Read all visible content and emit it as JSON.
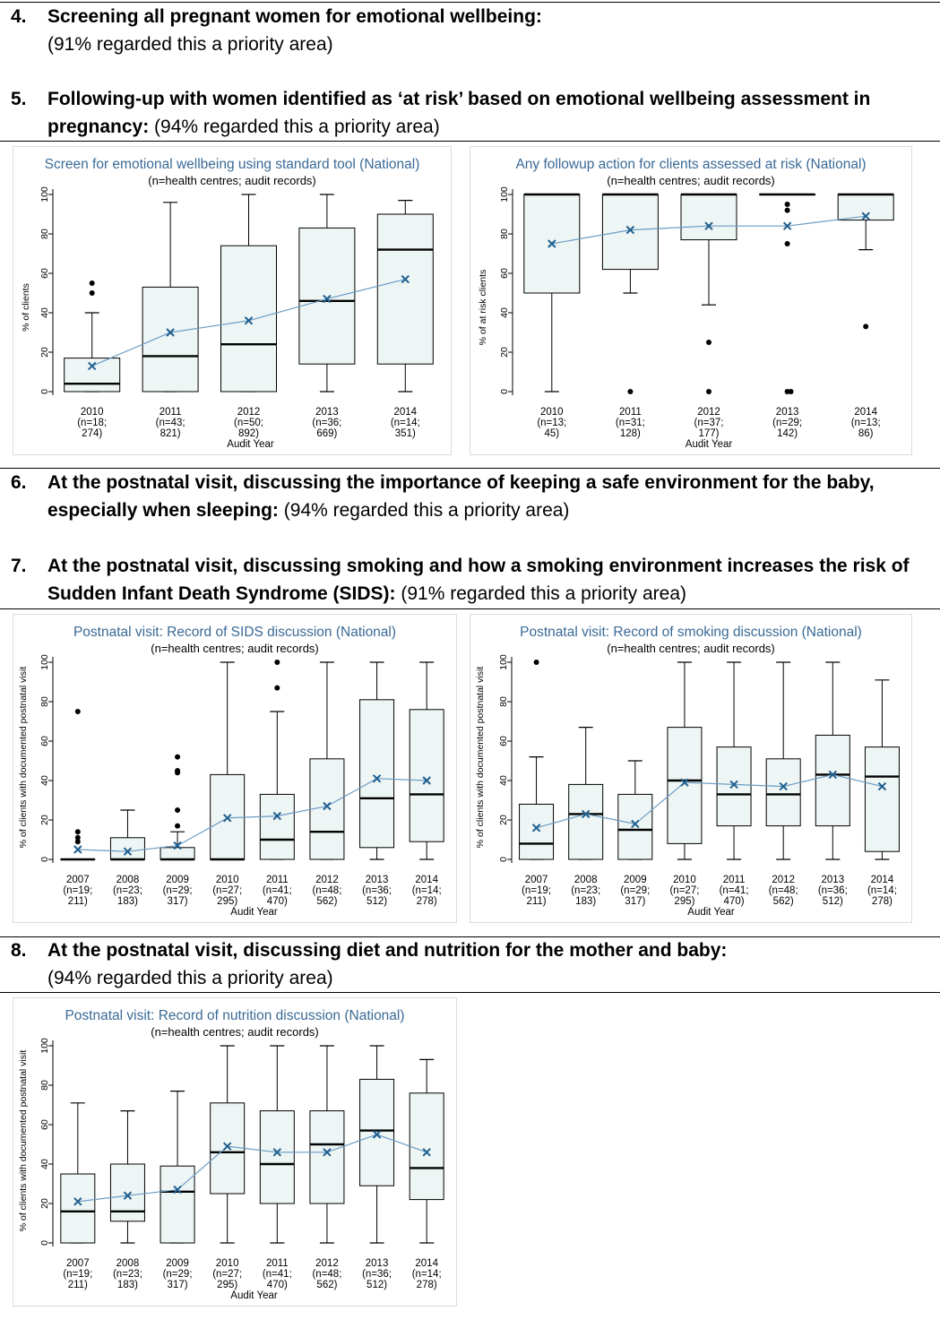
{
  "items": [
    {
      "num": "4.",
      "bold": "Screening all pregnant women for emotional wellbeing:",
      "normal": "(91% regarded this a priority area)",
      "break": true
    },
    {
      "num": "5.",
      "bold": "Following-up with women identified as ‘at risk’ based on emotional wellbeing assessment in pregnancy:",
      "normal": " (94% regarded this a priority area)",
      "break": false
    },
    {
      "num": "6.",
      "bold": "At the postnatal visit, discussing the importance of keeping a safe environment for the baby, especially when sleeping:",
      "normal": " (94% regarded this a priority area)",
      "break": false
    },
    {
      "num": "7.",
      "bold": "At the postnatal visit, discussing smoking and how a smoking environment increases the risk of Sudden Infant Death Syndrome (SIDS):",
      "normal": " (91% regarded this a priority area)",
      "break": false
    },
    {
      "num": "8.",
      "bold": "At the postnatal visit, discussing diet and nutrition for the mother and baby:",
      "normal": "(94% regarded this a priority area)",
      "break": true
    }
  ],
  "chart_data": [
    {
      "id": "emotional-screen",
      "type": "box",
      "title": "Screen for emotional wellbeing using standard tool (National)",
      "subtitle": "(n=health centres; audit records)",
      "ylabel": "% of clients",
      "xlabel": "Audit Year",
      "ylim": [
        0,
        100
      ],
      "yticks": [
        0,
        20,
        40,
        60,
        80,
        100
      ],
      "categories": [
        [
          "2010",
          "(n=18;",
          "274)"
        ],
        [
          "2011",
          "(n=43;",
          "821)"
        ],
        [
          "2012",
          "(n=50;",
          "892)"
        ],
        [
          "2013",
          "(n=36;",
          "669)"
        ],
        [
          "2014",
          "(n=14;",
          "351)"
        ]
      ],
      "boxes": [
        {
          "min": 0,
          "q1": 0,
          "median": 4,
          "q3": 17,
          "max": 40,
          "mean": 13,
          "outliers": [
            50,
            55
          ]
        },
        {
          "min": 0,
          "q1": 0,
          "median": 18,
          "q3": 53,
          "max": 96,
          "mean": 30,
          "outliers": []
        },
        {
          "min": 0,
          "q1": 0,
          "median": 24,
          "q3": 74,
          "max": 100,
          "mean": 36,
          "outliers": []
        },
        {
          "min": 0,
          "q1": 14,
          "median": 46,
          "q3": 83,
          "max": 100,
          "mean": 47,
          "outliers": []
        },
        {
          "min": 0,
          "q1": 14,
          "median": 72,
          "q3": 90,
          "max": 97,
          "mean": 57,
          "outliers": []
        }
      ]
    },
    {
      "id": "followup-risk",
      "type": "box",
      "title": "Any followup action for clients assessed at risk (National)",
      "subtitle": "(n=health centres; audit records)",
      "ylabel": "% of at risk clients",
      "xlabel": "Audit Year",
      "ylim": [
        0,
        100
      ],
      "yticks": [
        0,
        20,
        40,
        60,
        80,
        100
      ],
      "categories": [
        [
          "2010",
          "(n=13;",
          "45)"
        ],
        [
          "2011",
          "(n=31;",
          "128)"
        ],
        [
          "2012",
          "(n=37;",
          "177)"
        ],
        [
          "2013",
          "(n=29;",
          "142)"
        ],
        [
          "2014",
          "(n=13;",
          "86)"
        ]
      ],
      "boxes": [
        {
          "min": 0,
          "q1": 50,
          "median": 100,
          "q3": 100,
          "max": 100,
          "mean": 75,
          "outliers": []
        },
        {
          "min": 50,
          "q1": 62,
          "median": 100,
          "q3": 100,
          "max": 100,
          "mean": 82,
          "outliers": [
            0
          ]
        },
        {
          "min": 44,
          "q1": 77,
          "median": 100,
          "q3": 100,
          "max": 100,
          "mean": 84,
          "outliers": [
            25,
            0
          ]
        },
        {
          "min": 100,
          "q1": 100,
          "median": 100,
          "q3": 100,
          "max": 100,
          "mean": 84,
          "outliers": [
            95,
            92,
            75,
            0,
            0
          ]
        },
        {
          "min": 72,
          "q1": 87,
          "median": 100,
          "q3": 100,
          "max": 100,
          "mean": 89,
          "outliers": [
            33
          ]
        }
      ]
    },
    {
      "id": "sids",
      "type": "box",
      "title": "Postnatal visit: Record of SIDS discussion (National)",
      "subtitle": "(n=health centres; audit records)",
      "ylabel": "% of clients with documented postnatal visit",
      "xlabel": "Audit Year",
      "ylim": [
        0,
        100
      ],
      "yticks": [
        0,
        20,
        40,
        60,
        80,
        100
      ],
      "categories": [
        [
          "2007",
          "(n=19;",
          "211)"
        ],
        [
          "2008",
          "(n=23;",
          "183)"
        ],
        [
          "2009",
          "(n=29;",
          "317)"
        ],
        [
          "2010",
          "(n=27;",
          "295)"
        ],
        [
          "2011",
          "(n=41;",
          "470)"
        ],
        [
          "2012",
          "(n=48;",
          "562)"
        ],
        [
          "2013",
          "(n=36;",
          "512)"
        ],
        [
          "2014",
          "(n=14;",
          "278)"
        ]
      ],
      "boxes": [
        {
          "min": 0,
          "q1": 0,
          "median": 0,
          "q3": 0,
          "max": 0,
          "mean": 5,
          "outliers": [
            75,
            14,
            11,
            9
          ]
        },
        {
          "min": 0,
          "q1": 0,
          "median": 0,
          "q3": 11,
          "max": 25,
          "mean": 4,
          "outliers": []
        },
        {
          "min": 0,
          "q1": 0,
          "median": 0,
          "q3": 6,
          "max": 14,
          "mean": 7,
          "outliers": [
            52,
            45,
            44,
            25,
            17
          ]
        },
        {
          "min": 0,
          "q1": 0,
          "median": 0,
          "q3": 43,
          "max": 100,
          "mean": 21,
          "outliers": []
        },
        {
          "min": 0,
          "q1": 0,
          "median": 10,
          "q3": 33,
          "max": 75,
          "mean": 22,
          "outliers": [
            100,
            87
          ]
        },
        {
          "min": 0,
          "q1": 0,
          "median": 14,
          "q3": 51,
          "max": 100,
          "mean": 27,
          "outliers": []
        },
        {
          "min": 0,
          "q1": 6,
          "median": 31,
          "q3": 81,
          "max": 100,
          "mean": 41,
          "outliers": []
        },
        {
          "min": 0,
          "q1": 9,
          "median": 33,
          "q3": 76,
          "max": 100,
          "mean": 40,
          "outliers": []
        }
      ]
    },
    {
      "id": "smoking",
      "type": "box",
      "title": "Postnatal visit: Record of smoking discussion (National)",
      "subtitle": "(n=health centres; audit records)",
      "ylabel": "% of clients with documented postnatal visit",
      "xlabel": "Audit Year",
      "ylim": [
        0,
        100
      ],
      "yticks": [
        0,
        20,
        40,
        60,
        80,
        100
      ],
      "categories": [
        [
          "2007",
          "(n=19;",
          "211)"
        ],
        [
          "2008",
          "(n=23;",
          "183)"
        ],
        [
          "2009",
          "(n=29;",
          "317)"
        ],
        [
          "2010",
          "(n=27;",
          "295)"
        ],
        [
          "2011",
          "(n=41;",
          "470)"
        ],
        [
          "2012",
          "(n=48;",
          "562)"
        ],
        [
          "2013",
          "(n=36;",
          "512)"
        ],
        [
          "2014",
          "(n=14;",
          "278)"
        ]
      ],
      "boxes": [
        {
          "min": 0,
          "q1": 0,
          "median": 8,
          "q3": 28,
          "max": 52,
          "mean": 16,
          "outliers": [
            100
          ]
        },
        {
          "min": 0,
          "q1": 0,
          "median": 23,
          "q3": 38,
          "max": 67,
          "mean": 23,
          "outliers": []
        },
        {
          "min": 0,
          "q1": 0,
          "median": 15,
          "q3": 33,
          "max": 50,
          "mean": 18,
          "outliers": []
        },
        {
          "min": 0,
          "q1": 8,
          "median": 40,
          "q3": 67,
          "max": 100,
          "mean": 39,
          "outliers": []
        },
        {
          "min": 0,
          "q1": 17,
          "median": 33,
          "q3": 57,
          "max": 100,
          "mean": 38,
          "outliers": []
        },
        {
          "min": 0,
          "q1": 17,
          "median": 33,
          "q3": 51,
          "max": 100,
          "mean": 37,
          "outliers": []
        },
        {
          "min": 0,
          "q1": 17,
          "median": 43,
          "q3": 63,
          "max": 100,
          "mean": 43,
          "outliers": []
        },
        {
          "min": 0,
          "q1": 4,
          "median": 42,
          "q3": 57,
          "max": 91,
          "mean": 37,
          "outliers": []
        }
      ]
    },
    {
      "id": "nutrition",
      "type": "box",
      "title": "Postnatal visit: Record of nutrition discussion (National)",
      "subtitle": "(n=health centres; audit records)",
      "ylabel": "% of clients with documented postnatal visit",
      "xlabel": "Audit Year",
      "ylim": [
        0,
        100
      ],
      "yticks": [
        0,
        20,
        40,
        60,
        80,
        100
      ],
      "categories": [
        [
          "2007",
          "(n=19;",
          "211)"
        ],
        [
          "2008",
          "(n=23;",
          "183)"
        ],
        [
          "2009",
          "(n=29;",
          "317)"
        ],
        [
          "2010",
          "(n=27;",
          "295)"
        ],
        [
          "2011",
          "(n=41;",
          "470)"
        ],
        [
          "2012",
          "(n=48;",
          "562)"
        ],
        [
          "2013",
          "(n=36;",
          "512)"
        ],
        [
          "2014",
          "(n=14;",
          "278)"
        ]
      ],
      "boxes": [
        {
          "min": 0,
          "q1": 0,
          "median": 16,
          "q3": 35,
          "max": 71,
          "mean": 21,
          "outliers": []
        },
        {
          "min": 0,
          "q1": 11,
          "median": 16,
          "q3": 40,
          "max": 67,
          "mean": 24,
          "outliers": []
        },
        {
          "min": 0,
          "q1": 0,
          "median": 26,
          "q3": 39,
          "max": 77,
          "mean": 27,
          "outliers": []
        },
        {
          "min": 0,
          "q1": 25,
          "median": 46,
          "q3": 71,
          "max": 100,
          "mean": 49,
          "outliers": []
        },
        {
          "min": 0,
          "q1": 20,
          "median": 40,
          "q3": 67,
          "max": 100,
          "mean": 46,
          "outliers": []
        },
        {
          "min": 0,
          "q1": 20,
          "median": 50,
          "q3": 67,
          "max": 100,
          "mean": 46,
          "outliers": []
        },
        {
          "min": 0,
          "q1": 29,
          "median": 57,
          "q3": 83,
          "max": 100,
          "mean": 55,
          "outliers": []
        },
        {
          "min": 0,
          "q1": 22,
          "median": 38,
          "q3": 76,
          "max": 93,
          "mean": 46,
          "outliers": []
        }
      ]
    }
  ],
  "colors": {
    "box_fill": "#eef5f5",
    "mean_line": "#6a9cc4",
    "mean_marker": "#1f5f8f",
    "title": "#3a6a96",
    "frame": "#d8dde2"
  }
}
